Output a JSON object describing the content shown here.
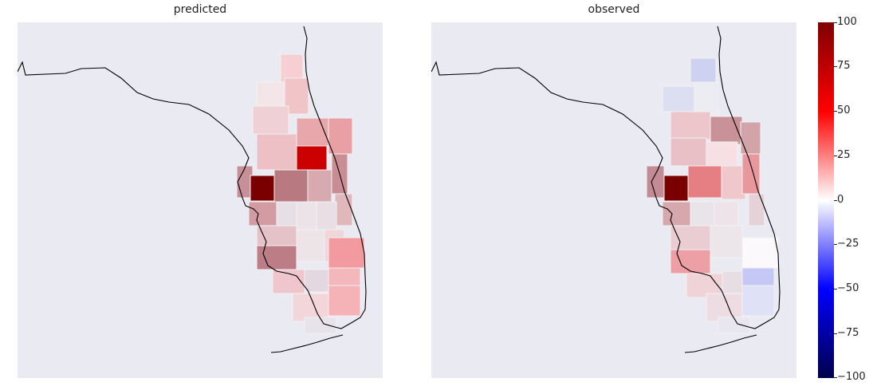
{
  "panels": [
    {
      "title": "predicted"
    },
    {
      "title": "observed"
    }
  ],
  "colorbar": {
    "min": -100,
    "max": 100,
    "colormap": "seismic",
    "ticks": [
      "100",
      "75",
      "50",
      "25",
      "0",
      "−25",
      "−50",
      "−75",
      "−100"
    ]
  },
  "colors": {
    "background": "#eaeaf2",
    "positive_max": "#7f0000",
    "negative_max": "#00004c",
    "zero": "#ffffff"
  }
}
